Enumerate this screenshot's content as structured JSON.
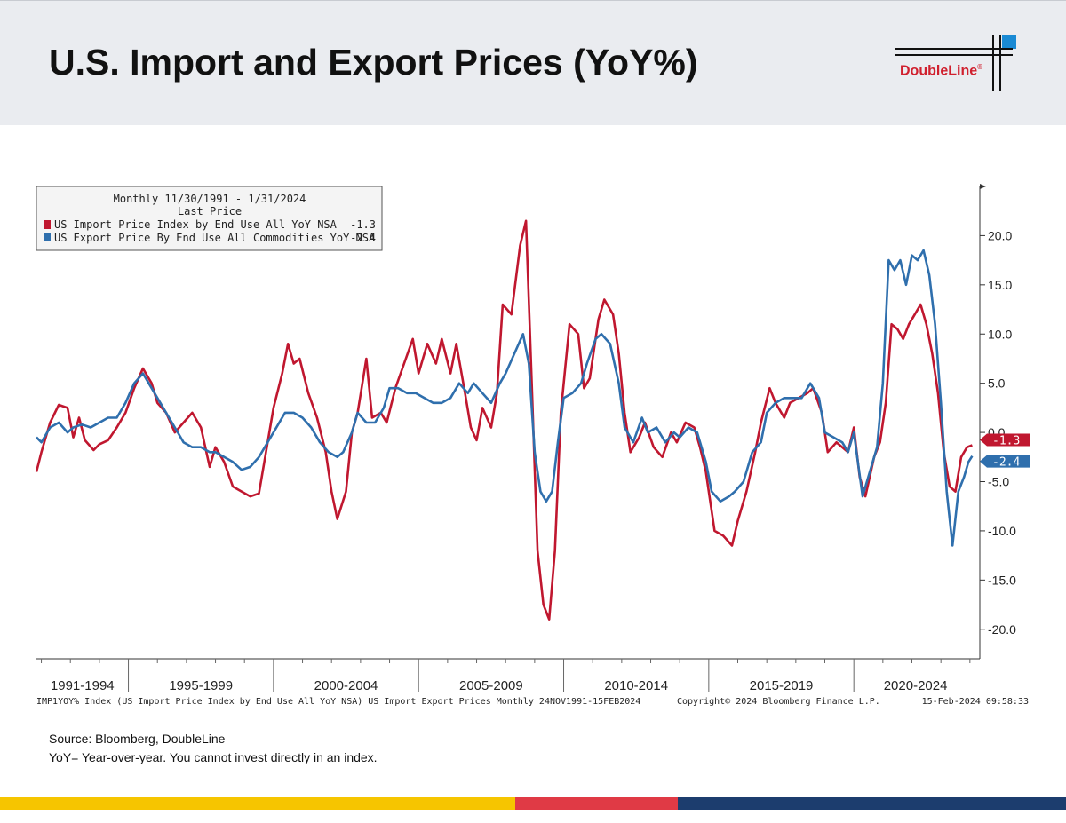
{
  "header": {
    "title": "U.S. Import and Export Prices (YoY%)",
    "logo_text": "DoubleLine",
    "logo_reg": "®"
  },
  "legend": {
    "line1": "Monthly 11/30/1991 - 1/31/2024",
    "line2": "Last Price",
    "series": [
      {
        "label": "US Import Price Index by End Use All YoY NSA",
        "last": "-1.3"
      },
      {
        "label": "US Export Price By End Use All Commodities YoY NSA",
        "last": "-2.4"
      }
    ]
  },
  "footer_line": {
    "left": "IMP1YOY% Index (US Import Price Index by End Use All YoY NSA) US Import Export Prices  Monthly 24NOV1991-15FEB2024",
    "copyright": "Copyright© 2024 Bloomberg Finance L.P.",
    "timestamp": "15-Feb-2024 09:58:33"
  },
  "source": {
    "line1": "Source: Bloomberg, DoubleLine",
    "line2": "YoY= Year-over-year. You cannot invest directly in an index."
  },
  "colors": {
    "import": "#c0172f",
    "export": "#2f6fad",
    "stripe_yellow": "#f6c500",
    "stripe_red": "#e03a45",
    "stripe_navy": "#1c3d6e",
    "logo_blue": "#1a8ad4"
  },
  "chart_data": {
    "type": "line",
    "x_range": [
      1991.83,
      2024.25
    ],
    "ylim": [
      -23,
      25
    ],
    "y_ticks": [
      "20.0",
      "15.0",
      "10.0",
      "5.0",
      "0.0",
      "-5.0",
      "-10.0",
      "-15.0",
      "-20.0"
    ],
    "y_tick_values": [
      20,
      15,
      10,
      5,
      0,
      -5,
      -10,
      -15,
      -20
    ],
    "x_categories": [
      "1991-1994",
      "1995-1999",
      "2000-2004",
      "2005-2009",
      "2010-2014",
      "2015-2019",
      "2020-2024"
    ],
    "x_category_ranges": [
      [
        1991.83,
        1995
      ],
      [
        1995,
        2000
      ],
      [
        2000,
        2005
      ],
      [
        2005,
        2010
      ],
      [
        2010,
        2015
      ],
      [
        2015,
        2020
      ],
      [
        2020,
        2024.25
      ]
    ],
    "grid": false,
    "legend_position": "top-left",
    "series": [
      {
        "name": "US Import Price Index by End Use All YoY NSA",
        "last": -1.3,
        "points": [
          [
            1991.83,
            -4.0
          ],
          [
            1992.0,
            -2.0
          ],
          [
            1992.3,
            1.0
          ],
          [
            1992.6,
            2.8
          ],
          [
            1992.9,
            2.5
          ],
          [
            1993.1,
            -0.5
          ],
          [
            1993.3,
            1.5
          ],
          [
            1993.5,
            -0.8
          ],
          [
            1993.8,
            -1.8
          ],
          [
            1994.0,
            -1.2
          ],
          [
            1994.3,
            -0.8
          ],
          [
            1994.6,
            0.5
          ],
          [
            1994.9,
            2.0
          ],
          [
            1995.2,
            4.5
          ],
          [
            1995.5,
            6.5
          ],
          [
            1995.8,
            5.0
          ],
          [
            1996.0,
            3.0
          ],
          [
            1996.3,
            2.0
          ],
          [
            1996.6,
            0.0
          ],
          [
            1996.9,
            1.0
          ],
          [
            1997.2,
            2.0
          ],
          [
            1997.5,
            0.5
          ],
          [
            1997.8,
            -3.5
          ],
          [
            1998.0,
            -1.5
          ],
          [
            1998.3,
            -3.0
          ],
          [
            1998.6,
            -5.5
          ],
          [
            1998.9,
            -6.0
          ],
          [
            1999.2,
            -6.5
          ],
          [
            1999.5,
            -6.2
          ],
          [
            1999.8,
            -1.0
          ],
          [
            2000.0,
            2.5
          ],
          [
            2000.3,
            6.0
          ],
          [
            2000.5,
            9.0
          ],
          [
            2000.7,
            7.0
          ],
          [
            2000.9,
            7.5
          ],
          [
            2001.2,
            4.0
          ],
          [
            2001.5,
            1.5
          ],
          [
            2001.8,
            -2.0
          ],
          [
            2002.0,
            -6.0
          ],
          [
            2002.2,
            -8.8
          ],
          [
            2002.5,
            -6.0
          ],
          [
            2002.7,
            0.0
          ],
          [
            2002.9,
            2.0
          ],
          [
            2003.2,
            7.5
          ],
          [
            2003.4,
            1.5
          ],
          [
            2003.7,
            2.0
          ],
          [
            2003.9,
            1.0
          ],
          [
            2004.2,
            4.5
          ],
          [
            2004.5,
            7.0
          ],
          [
            2004.8,
            9.5
          ],
          [
            2005.0,
            6.0
          ],
          [
            2005.3,
            9.0
          ],
          [
            2005.6,
            7.0
          ],
          [
            2005.8,
            9.5
          ],
          [
            2006.1,
            6.0
          ],
          [
            2006.3,
            9.0
          ],
          [
            2006.6,
            4.0
          ],
          [
            2006.8,
            0.5
          ],
          [
            2007.0,
            -0.8
          ],
          [
            2007.2,
            2.5
          ],
          [
            2007.5,
            0.5
          ],
          [
            2007.7,
            4.0
          ],
          [
            2007.9,
            13.0
          ],
          [
            2008.2,
            12.0
          ],
          [
            2008.5,
            19.0
          ],
          [
            2008.7,
            21.5
          ],
          [
            2008.9,
            5.0
          ],
          [
            2009.1,
            -12.0
          ],
          [
            2009.3,
            -17.5
          ],
          [
            2009.5,
            -19.0
          ],
          [
            2009.7,
            -12.0
          ],
          [
            2009.9,
            2.0
          ],
          [
            2010.2,
            11.0
          ],
          [
            2010.5,
            10.0
          ],
          [
            2010.7,
            4.5
          ],
          [
            2010.9,
            5.5
          ],
          [
            2011.2,
            11.5
          ],
          [
            2011.4,
            13.5
          ],
          [
            2011.7,
            12.0
          ],
          [
            2011.9,
            8.0
          ],
          [
            2012.1,
            2.0
          ],
          [
            2012.3,
            -2.0
          ],
          [
            2012.6,
            -0.5
          ],
          [
            2012.8,
            1.0
          ],
          [
            2013.1,
            -1.5
          ],
          [
            2013.4,
            -2.5
          ],
          [
            2013.7,
            0.0
          ],
          [
            2013.9,
            -1.0
          ],
          [
            2014.2,
            1.0
          ],
          [
            2014.5,
            0.5
          ],
          [
            2014.7,
            -1.5
          ],
          [
            2014.9,
            -4.0
          ],
          [
            2015.2,
            -10.0
          ],
          [
            2015.5,
            -10.5
          ],
          [
            2015.8,
            -11.5
          ],
          [
            2016.0,
            -9.0
          ],
          [
            2016.3,
            -6.0
          ],
          [
            2016.6,
            -2.0
          ],
          [
            2016.8,
            1.0
          ],
          [
            2017.1,
            4.5
          ],
          [
            2017.3,
            3.0
          ],
          [
            2017.6,
            1.5
          ],
          [
            2017.8,
            3.0
          ],
          [
            2018.1,
            3.5
          ],
          [
            2018.4,
            4.0
          ],
          [
            2018.6,
            4.5
          ],
          [
            2018.9,
            2.0
          ],
          [
            2019.1,
            -2.0
          ],
          [
            2019.4,
            -1.0
          ],
          [
            2019.6,
            -1.5
          ],
          [
            2019.8,
            -2.0
          ],
          [
            2020.0,
            0.5
          ],
          [
            2020.2,
            -4.5
          ],
          [
            2020.4,
            -6.5
          ],
          [
            2020.7,
            -2.5
          ],
          [
            2020.9,
            -1.0
          ],
          [
            2021.1,
            3.0
          ],
          [
            2021.3,
            11.0
          ],
          [
            2021.5,
            10.5
          ],
          [
            2021.7,
            9.5
          ],
          [
            2021.9,
            11.0
          ],
          [
            2022.1,
            12.0
          ],
          [
            2022.3,
            13.0
          ],
          [
            2022.5,
            11.0
          ],
          [
            2022.7,
            8.0
          ],
          [
            2022.9,
            4.0
          ],
          [
            2023.1,
            -2.0
          ],
          [
            2023.3,
            -5.5
          ],
          [
            2023.5,
            -6.0
          ],
          [
            2023.7,
            -2.5
          ],
          [
            2023.9,
            -1.5
          ],
          [
            2024.08,
            -1.3
          ]
        ]
      },
      {
        "name": "US Export Price By End Use All Commodities YoY NSA",
        "last": -2.4,
        "points": [
          [
            1991.83,
            -0.5
          ],
          [
            1992.0,
            -1.0
          ],
          [
            1992.3,
            0.5
          ],
          [
            1992.6,
            1.0
          ],
          [
            1992.9,
            0.0
          ],
          [
            1993.1,
            0.5
          ],
          [
            1993.4,
            0.8
          ],
          [
            1993.7,
            0.5
          ],
          [
            1994.0,
            1.0
          ],
          [
            1994.3,
            1.5
          ],
          [
            1994.6,
            1.5
          ],
          [
            1994.9,
            3.0
          ],
          [
            1995.2,
            5.0
          ],
          [
            1995.5,
            6.0
          ],
          [
            1995.8,
            4.5
          ],
          [
            1996.1,
            3.0
          ],
          [
            1996.4,
            1.5
          ],
          [
            1996.7,
            0.0
          ],
          [
            1996.9,
            -1.0
          ],
          [
            1997.2,
            -1.5
          ],
          [
            1997.5,
            -1.5
          ],
          [
            1997.8,
            -2.0
          ],
          [
            1998.0,
            -2.0
          ],
          [
            1998.3,
            -2.5
          ],
          [
            1998.6,
            -3.0
          ],
          [
            1998.9,
            -3.8
          ],
          [
            1999.2,
            -3.5
          ],
          [
            1999.5,
            -2.5
          ],
          [
            1999.8,
            -1.0
          ],
          [
            2000.0,
            0.0
          ],
          [
            2000.4,
            2.0
          ],
          [
            2000.7,
            2.0
          ],
          [
            2001.0,
            1.5
          ],
          [
            2001.3,
            0.5
          ],
          [
            2001.6,
            -1.0
          ],
          [
            2001.9,
            -2.0
          ],
          [
            2002.2,
            -2.5
          ],
          [
            2002.4,
            -2.0
          ],
          [
            2002.7,
            0.0
          ],
          [
            2002.9,
            2.0
          ],
          [
            2003.2,
            1.0
          ],
          [
            2003.5,
            1.0
          ],
          [
            2003.8,
            2.5
          ],
          [
            2004.0,
            4.5
          ],
          [
            2004.3,
            4.5
          ],
          [
            2004.6,
            4.0
          ],
          [
            2004.9,
            4.0
          ],
          [
            2005.2,
            3.5
          ],
          [
            2005.5,
            3.0
          ],
          [
            2005.8,
            3.0
          ],
          [
            2006.1,
            3.5
          ],
          [
            2006.4,
            5.0
          ],
          [
            2006.7,
            4.0
          ],
          [
            2006.9,
            5.0
          ],
          [
            2007.2,
            4.0
          ],
          [
            2007.5,
            3.0
          ],
          [
            2007.8,
            5.0
          ],
          [
            2008.0,
            6.0
          ],
          [
            2008.3,
            8.0
          ],
          [
            2008.6,
            10.0
          ],
          [
            2008.8,
            7.0
          ],
          [
            2009.0,
            -2.0
          ],
          [
            2009.2,
            -6.0
          ],
          [
            2009.4,
            -7.0
          ],
          [
            2009.6,
            -6.0
          ],
          [
            2009.8,
            -1.0
          ],
          [
            2010.0,
            3.5
          ],
          [
            2010.3,
            4.0
          ],
          [
            2010.6,
            5.0
          ],
          [
            2010.8,
            7.0
          ],
          [
            2011.1,
            9.5
          ],
          [
            2011.3,
            10.0
          ],
          [
            2011.6,
            9.0
          ],
          [
            2011.9,
            5.0
          ],
          [
            2012.1,
            0.5
          ],
          [
            2012.4,
            -1.0
          ],
          [
            2012.7,
            1.5
          ],
          [
            2012.9,
            0.0
          ],
          [
            2013.2,
            0.5
          ],
          [
            2013.5,
            -1.0
          ],
          [
            2013.8,
            0.0
          ],
          [
            2014.0,
            -0.5
          ],
          [
            2014.3,
            0.5
          ],
          [
            2014.6,
            0.0
          ],
          [
            2014.9,
            -3.0
          ],
          [
            2015.1,
            -6.0
          ],
          [
            2015.4,
            -7.0
          ],
          [
            2015.7,
            -6.5
          ],
          [
            2015.9,
            -6.0
          ],
          [
            2016.2,
            -5.0
          ],
          [
            2016.5,
            -2.0
          ],
          [
            2016.8,
            -1.0
          ],
          [
            2017.0,
            2.0
          ],
          [
            2017.3,
            3.0
          ],
          [
            2017.6,
            3.5
          ],
          [
            2017.9,
            3.5
          ],
          [
            2018.2,
            3.5
          ],
          [
            2018.5,
            5.0
          ],
          [
            2018.8,
            3.5
          ],
          [
            2019.0,
            0.0
          ],
          [
            2019.3,
            -0.5
          ],
          [
            2019.6,
            -1.0
          ],
          [
            2019.8,
            -2.0
          ],
          [
            2020.0,
            0.0
          ],
          [
            2020.3,
            -6.5
          ],
          [
            2020.5,
            -4.5
          ],
          [
            2020.8,
            -1.5
          ],
          [
            2021.0,
            5.0
          ],
          [
            2021.2,
            17.5
          ],
          [
            2021.4,
            16.5
          ],
          [
            2021.6,
            17.5
          ],
          [
            2021.8,
            15.0
          ],
          [
            2022.0,
            18.0
          ],
          [
            2022.2,
            17.5
          ],
          [
            2022.4,
            18.5
          ],
          [
            2022.6,
            16.0
          ],
          [
            2022.8,
            11.0
          ],
          [
            2023.0,
            3.0
          ],
          [
            2023.2,
            -6.0
          ],
          [
            2023.4,
            -11.5
          ],
          [
            2023.6,
            -6.0
          ],
          [
            2023.8,
            -4.5
          ],
          [
            2023.95,
            -3.0
          ],
          [
            2024.08,
            -2.4
          ]
        ]
      }
    ]
  }
}
